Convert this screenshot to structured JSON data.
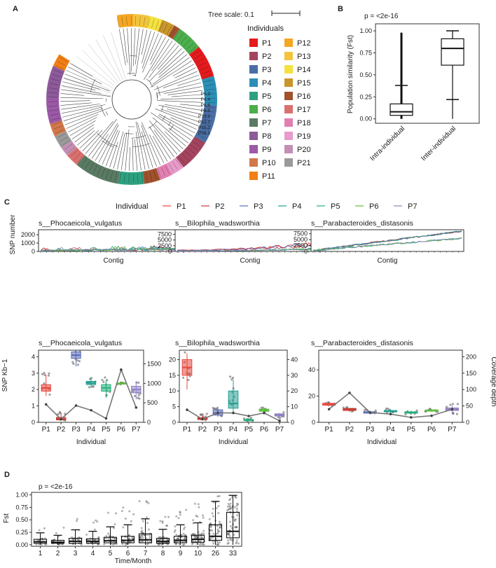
{
  "panel_labels": [
    "A",
    "B",
    "C",
    "D"
  ],
  "tree": {
    "scale_label": "Tree scale: 0.1",
    "legend_title": "Individuals",
    "individuals": [
      {
        "name": "P1",
        "color": "#e41a1c"
      },
      {
        "name": "P2",
        "color": "#a4445e"
      },
      {
        "name": "P3",
        "color": "#4a6fa5"
      },
      {
        "name": "P4",
        "color": "#2c8fb5"
      },
      {
        "name": "P5",
        "color": "#2ea07f"
      },
      {
        "name": "P6",
        "color": "#4cae4c"
      },
      {
        "name": "P7",
        "color": "#5a7a63"
      },
      {
        "name": "P8",
        "color": "#8d5a9a"
      },
      {
        "name": "P9",
        "color": "#9b59a6"
      },
      {
        "name": "P10",
        "color": "#d2774a"
      },
      {
        "name": "P11",
        "color": "#f07f17"
      },
      {
        "name": "P12",
        "color": "#f5a623"
      },
      {
        "name": "P13",
        "color": "#f3c43b"
      },
      {
        "name": "P14",
        "color": "#f4e23f"
      },
      {
        "name": "P15",
        "color": "#c9962c"
      },
      {
        "name": "P16",
        "color": "#a0522d"
      },
      {
        "name": "P17",
        "color": "#d9706e"
      },
      {
        "name": "P18",
        "color": "#e27fb1"
      },
      {
        "name": "P19",
        "color": "#e79bcb"
      },
      {
        "name": "P20",
        "color": "#c48fb5"
      },
      {
        "name": "P21",
        "color": "#9a9a9a"
      }
    ],
    "visible_leaf_labels": [
      "P15.1",
      "P15.2",
      "P13.1",
      "P13.2",
      "P6.5",
      "P6.6",
      "P6.4",
      "P6.3"
    ]
  },
  "chart_data": [
    {
      "id": "B",
      "type": "box",
      "annotation": "p = <2e-16",
      "ylabel": "Population similarity (Fst)",
      "categories": [
        "Intra-individual",
        "Inter-individual"
      ],
      "ylim": [
        -0.05,
        1.08
      ],
      "yticks": [
        0.0,
        0.25,
        0.5,
        0.75,
        1.0
      ],
      "ytick_labels": [
        "0.00",
        "0.25",
        "0.50",
        "0.75",
        "1.00"
      ],
      "boxes": [
        {
          "whisker_low": 0.0,
          "q1": 0.04,
          "median": 0.08,
          "q3": 0.17,
          "whisker_high": 0.38,
          "max": 0.98
        },
        {
          "whisker_low": 0.0,
          "q1": 0.61,
          "median": 0.8,
          "q3": 0.91,
          "whisker_high": 1.0,
          "lower_bar": 0.22
        }
      ]
    },
    {
      "id": "C",
      "type": "line",
      "legend_title": "Individual",
      "series_names": [
        "P1",
        "P2",
        "P3",
        "P4",
        "P5",
        "P6",
        "P7"
      ],
      "series_colors": [
        "#e8463c",
        "#c8372d",
        "#5b6bb8",
        "#1f9f8f",
        "#21b07a",
        "#5cbf3c",
        "#8f7fc4"
      ],
      "subplots": [
        {
          "title": "s__Phocaeicola_vulgatus",
          "xlabel": "Contig",
          "ylabel": "SNP number",
          "ylim": [
            0,
            2600
          ],
          "yticks": [
            0,
            1000,
            2000
          ],
          "ytick_labels": [
            "0",
            "1000",
            "2000"
          ]
        },
        {
          "title": "s__Bilophila_wadsworthia",
          "xlabel": "Contig",
          "ylabel": "",
          "ylim": [
            0,
            9500
          ],
          "yticks": [
            0,
            2500,
            5000,
            7500
          ],
          "ytick_labels": [
            "0",
            "2500",
            "5000",
            "7500"
          ]
        },
        {
          "title": "s__Parabacteroides_distasonis",
          "xlabel": "Contig",
          "ylabel": "",
          "ylim": [
            0,
            9200
          ],
          "yticks": [
            0,
            2500,
            5000,
            7500
          ],
          "ytick_labels": [
            "0",
            "2500",
            "5000",
            "7500"
          ]
        }
      ]
    },
    {
      "id": "C-bottom",
      "type": "box",
      "xlabel": "Individual",
      "ylabel": "SNP Kb−1",
      "y2label": "Coverage depth",
      "categories": [
        "P1",
        "P2",
        "P3",
        "P4",
        "P5",
        "P6",
        "P7"
      ],
      "subplots": [
        {
          "title": "s__Phocaeicola_vulgatus",
          "ylim": [
            0,
            4.4
          ],
          "yticks": [
            0,
            1,
            2,
            3,
            4
          ],
          "ytick_labels": [
            "0",
            "1",
            "2",
            "3",
            "4"
          ],
          "y2lim": [
            0,
            1850
          ],
          "y2ticks": [
            0,
            500,
            1000,
            1500
          ],
          "y2tick_labels": [
            "0",
            "500",
            "1000",
            "1500"
          ],
          "snp": [
            [
              1.6,
              1.9,
              2.1,
              2.3,
              2.9
            ],
            [
              0.1,
              0.15,
              0.2,
              0.3,
              0.6
            ],
            [
              3.4,
              3.9,
              4.1,
              4.3,
              4.4
            ],
            [
              2.1,
              2.3,
              2.4,
              2.5,
              2.7
            ],
            [
              1.5,
              1.9,
              2.1,
              2.3,
              2.6
            ],
            [
              2.3,
              2.35,
              2.35,
              2.4,
              2.4
            ],
            [
              1.4,
              1.8,
              2.0,
              2.2,
              2.5
            ]
          ],
          "coverage": [
            460,
            80,
            430,
            310,
            100,
            1350,
            380
          ]
        },
        {
          "title": "s__Bilophila_wadsworthia",
          "ylim": [
            0,
            23
          ],
          "yticks": [
            0,
            5,
            10,
            15,
            20
          ],
          "ytick_labels": [
            "0",
            "5",
            "10",
            "15",
            "20"
          ],
          "y2lim": [
            0,
            46
          ],
          "y2ticks": [
            0,
            10,
            20,
            30,
            40
          ],
          "y2tick_labels": [
            "0",
            "10",
            "20",
            "30",
            "40"
          ],
          "snp": [
            [
              10.5,
              15,
              17.5,
              20,
              22
            ],
            [
              0.6,
              0.9,
              1.2,
              1.5,
              2.5
            ],
            [
              1.8,
              2.3,
              3.0,
              4.0,
              5.0
            ],
            [
              3.0,
              4.5,
              6.0,
              10,
              13.5
            ],
            [
              0.3,
              0.5,
              0.7,
              0.9,
              1.3
            ],
            [
              2.5,
              3.5,
              3.9,
              4.2,
              4.6
            ],
            [
              1.0,
              2.0,
              2.4,
              2.7,
              3.0
            ]
          ],
          "coverage": [
            8,
            2,
            6,
            6,
            4,
            6,
            1
          ]
        },
        {
          "title": "s__Parabacteroides_distasonis",
          "ylim": [
            0,
            55
          ],
          "yticks": [
            0,
            20,
            40
          ],
          "ytick_labels": [
            "0",
            "20",
            "40"
          ],
          "y2lim": [
            0,
            220
          ],
          "y2ticks": [
            0,
            50,
            100,
            150,
            200
          ],
          "y2tick_labels": [
            "0",
            "50",
            "100",
            "150",
            "200"
          ],
          "snp": [
            [
              12,
              13,
              14,
              14.5,
              15
            ],
            [
              8,
              9,
              10,
              10.5,
              11
            ],
            [
              6,
              7,
              7.5,
              8,
              9
            ],
            [
              7,
              8,
              8.5,
              9,
              10
            ],
            [
              6,
              7,
              7.5,
              8,
              9
            ],
            [
              8,
              8.5,
              9,
              9.5,
              10
            ],
            [
              6,
              9,
              10,
              11,
              13
            ]
          ],
          "coverage": [
            40,
            90,
            30,
            25,
            15,
            20,
            40
          ]
        }
      ]
    },
    {
      "id": "D",
      "type": "box",
      "annotation": "p = <2e-16",
      "ylabel": "Fst",
      "xlabel": "Time/Month",
      "categories": [
        "1",
        "2",
        "3",
        "4",
        "5",
        "6",
        "7",
        "8",
        "9",
        "10",
        "26",
        "33"
      ],
      "ylim": [
        -0.03,
        1.05
      ],
      "yticks": [
        0.0,
        0.25,
        0.5,
        0.75,
        1.0
      ],
      "ytick_labels": [
        "0.00",
        "0.25",
        "0.50",
        "0.75",
        "1.00"
      ],
      "boxes": [
        [
          0.0,
          0.03,
          0.06,
          0.11,
          0.24
        ],
        [
          0.0,
          0.03,
          0.05,
          0.09,
          0.19
        ],
        [
          0.0,
          0.03,
          0.07,
          0.13,
          0.3
        ],
        [
          0.0,
          0.03,
          0.07,
          0.12,
          0.27
        ],
        [
          0.0,
          0.04,
          0.08,
          0.15,
          0.36
        ],
        [
          0.0,
          0.04,
          0.09,
          0.17,
          0.4
        ],
        [
          0.0,
          0.04,
          0.1,
          0.22,
          0.52
        ],
        [
          0.0,
          0.03,
          0.07,
          0.13,
          0.31
        ],
        [
          0.0,
          0.04,
          0.09,
          0.17,
          0.4
        ],
        [
          0.0,
          0.05,
          0.11,
          0.19,
          0.44
        ],
        [
          0.0,
          0.09,
          0.17,
          0.4,
          0.87
        ],
        [
          0.0,
          0.14,
          0.27,
          0.65,
          0.99
        ]
      ]
    }
  ]
}
